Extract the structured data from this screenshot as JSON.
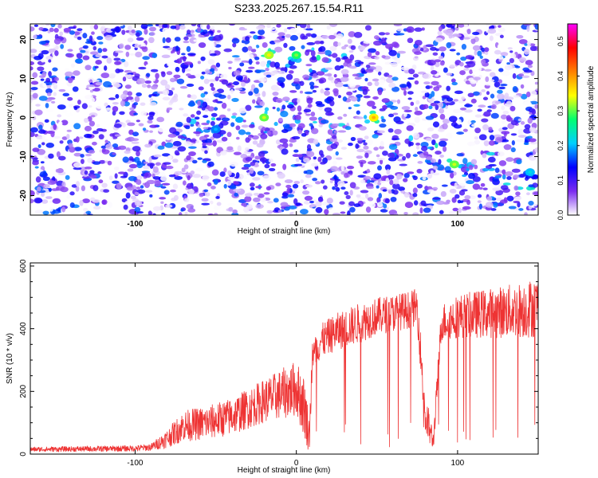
{
  "title": "S233.2025.267.15.54.R11",
  "chart_data": [
    {
      "type": "heatmap",
      "xlabel": "Height of straight line (km)",
      "ylabel": "Frequency (Hz)",
      "xlim": [
        -165,
        150
      ],
      "ylim": [
        -25,
        24
      ],
      "xticks": [
        -100,
        0,
        100
      ],
      "yticks": [
        -20,
        -10,
        0,
        10,
        20
      ],
      "colorbar": {
        "label": "Normalized spectral amplitude",
        "range": [
          0.0,
          0.55
        ],
        "ticks": [
          "0.0",
          "0.1",
          "0.2",
          "0.3",
          "0.4",
          "0.5"
        ],
        "colors": [
          "#ffffff",
          "#7b2cf0",
          "#0000ff",
          "#00cfff",
          "#00ff70",
          "#ffff00",
          "#ff8000",
          "#ff0000",
          "#ff00ff"
        ]
      },
      "hotspots": [
        {
          "x": -17,
          "y": 16,
          "value": 0.32
        },
        {
          "x": 0,
          "y": 16,
          "value": 0.28
        },
        {
          "x": -20,
          "y": 0,
          "value": 0.3
        },
        {
          "x": 48,
          "y": 0,
          "value": 0.35
        },
        {
          "x": 98,
          "y": -12,
          "value": 0.3
        },
        {
          "x": -50,
          "y": -3,
          "value": 0.18
        },
        {
          "x": 145,
          "y": -14,
          "value": 0.2
        }
      ]
    },
    {
      "type": "line",
      "xlabel": "Height of straight line (km)",
      "ylabel": "SNR (10 * v/v)",
      "xlim": [
        -165,
        150
      ],
      "ylim": [
        0,
        610
      ],
      "xticks": [
        -100,
        0,
        100
      ],
      "yticks": [
        0,
        200,
        400,
        600
      ],
      "color": "#ee3333",
      "envelope": {
        "x": [
          -165,
          -100,
          -90,
          -80,
          -70,
          -55,
          -40,
          -20,
          -10,
          0,
          5,
          8,
          10,
          15,
          25,
          40,
          50,
          60,
          70,
          75,
          80,
          85,
          90,
          100,
          120,
          140,
          150
        ],
        "mid": [
          15,
          18,
          22,
          50,
          90,
          100,
          120,
          170,
          190,
          210,
          150,
          60,
          300,
          360,
          390,
          420,
          440,
          450,
          460,
          470,
          120,
          40,
          420,
          440,
          450,
          460,
          470
        ],
        "amp": [
          8,
          10,
          12,
          30,
          50,
          55,
          60,
          70,
          80,
          90,
          100,
          60,
          60,
          55,
          60,
          65,
          60,
          60,
          60,
          60,
          80,
          30,
          60,
          70,
          80,
          90,
          100
        ]
      }
    }
  ]
}
